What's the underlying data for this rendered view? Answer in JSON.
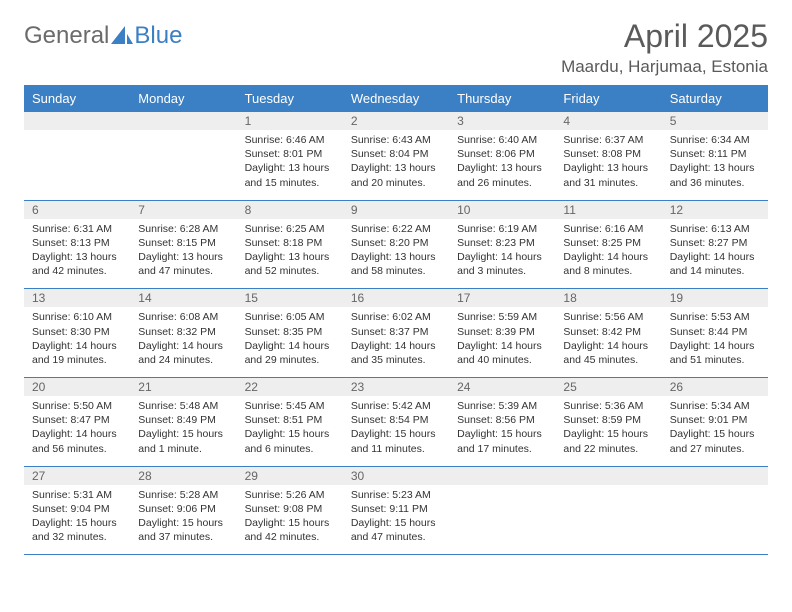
{
  "brand": {
    "part1": "General",
    "part2": "Blue"
  },
  "title": "April 2025",
  "location": "Maardu, Harjumaa, Estonia",
  "colors": {
    "header_bg": "#3b7fc4",
    "header_text": "#ffffff",
    "daynum_bg": "#eeeeee",
    "rule": "#3b7fc4",
    "body_text": "#333333",
    "title_text": "#5a5a5a"
  },
  "weekdays": [
    "Sunday",
    "Monday",
    "Tuesday",
    "Wednesday",
    "Thursday",
    "Friday",
    "Saturday"
  ],
  "weeks": [
    [
      null,
      null,
      {
        "n": "1",
        "sr": "6:46 AM",
        "ss": "8:01 PM",
        "dl": "13 hours and 15 minutes."
      },
      {
        "n": "2",
        "sr": "6:43 AM",
        "ss": "8:04 PM",
        "dl": "13 hours and 20 minutes."
      },
      {
        "n": "3",
        "sr": "6:40 AM",
        "ss": "8:06 PM",
        "dl": "13 hours and 26 minutes."
      },
      {
        "n": "4",
        "sr": "6:37 AM",
        "ss": "8:08 PM",
        "dl": "13 hours and 31 minutes."
      },
      {
        "n": "5",
        "sr": "6:34 AM",
        "ss": "8:11 PM",
        "dl": "13 hours and 36 minutes."
      }
    ],
    [
      {
        "n": "6",
        "sr": "6:31 AM",
        "ss": "8:13 PM",
        "dl": "13 hours and 42 minutes."
      },
      {
        "n": "7",
        "sr": "6:28 AM",
        "ss": "8:15 PM",
        "dl": "13 hours and 47 minutes."
      },
      {
        "n": "8",
        "sr": "6:25 AM",
        "ss": "8:18 PM",
        "dl": "13 hours and 52 minutes."
      },
      {
        "n": "9",
        "sr": "6:22 AM",
        "ss": "8:20 PM",
        "dl": "13 hours and 58 minutes."
      },
      {
        "n": "10",
        "sr": "6:19 AM",
        "ss": "8:23 PM",
        "dl": "14 hours and 3 minutes."
      },
      {
        "n": "11",
        "sr": "6:16 AM",
        "ss": "8:25 PM",
        "dl": "14 hours and 8 minutes."
      },
      {
        "n": "12",
        "sr": "6:13 AM",
        "ss": "8:27 PM",
        "dl": "14 hours and 14 minutes."
      }
    ],
    [
      {
        "n": "13",
        "sr": "6:10 AM",
        "ss": "8:30 PM",
        "dl": "14 hours and 19 minutes."
      },
      {
        "n": "14",
        "sr": "6:08 AM",
        "ss": "8:32 PM",
        "dl": "14 hours and 24 minutes."
      },
      {
        "n": "15",
        "sr": "6:05 AM",
        "ss": "8:35 PM",
        "dl": "14 hours and 29 minutes."
      },
      {
        "n": "16",
        "sr": "6:02 AM",
        "ss": "8:37 PM",
        "dl": "14 hours and 35 minutes."
      },
      {
        "n": "17",
        "sr": "5:59 AM",
        "ss": "8:39 PM",
        "dl": "14 hours and 40 minutes."
      },
      {
        "n": "18",
        "sr": "5:56 AM",
        "ss": "8:42 PM",
        "dl": "14 hours and 45 minutes."
      },
      {
        "n": "19",
        "sr": "5:53 AM",
        "ss": "8:44 PM",
        "dl": "14 hours and 51 minutes."
      }
    ],
    [
      {
        "n": "20",
        "sr": "5:50 AM",
        "ss": "8:47 PM",
        "dl": "14 hours and 56 minutes."
      },
      {
        "n": "21",
        "sr": "5:48 AM",
        "ss": "8:49 PM",
        "dl": "15 hours and 1 minute."
      },
      {
        "n": "22",
        "sr": "5:45 AM",
        "ss": "8:51 PM",
        "dl": "15 hours and 6 minutes."
      },
      {
        "n": "23",
        "sr": "5:42 AM",
        "ss": "8:54 PM",
        "dl": "15 hours and 11 minutes."
      },
      {
        "n": "24",
        "sr": "5:39 AM",
        "ss": "8:56 PM",
        "dl": "15 hours and 17 minutes."
      },
      {
        "n": "25",
        "sr": "5:36 AM",
        "ss": "8:59 PM",
        "dl": "15 hours and 22 minutes."
      },
      {
        "n": "26",
        "sr": "5:34 AM",
        "ss": "9:01 PM",
        "dl": "15 hours and 27 minutes."
      }
    ],
    [
      {
        "n": "27",
        "sr": "5:31 AM",
        "ss": "9:04 PM",
        "dl": "15 hours and 32 minutes."
      },
      {
        "n": "28",
        "sr": "5:28 AM",
        "ss": "9:06 PM",
        "dl": "15 hours and 37 minutes."
      },
      {
        "n": "29",
        "sr": "5:26 AM",
        "ss": "9:08 PM",
        "dl": "15 hours and 42 minutes."
      },
      {
        "n": "30",
        "sr": "5:23 AM",
        "ss": "9:11 PM",
        "dl": "15 hours and 47 minutes."
      },
      null,
      null,
      null
    ]
  ],
  "labels": {
    "sunrise": "Sunrise: ",
    "sunset": "Sunset: ",
    "daylight": "Daylight: "
  }
}
